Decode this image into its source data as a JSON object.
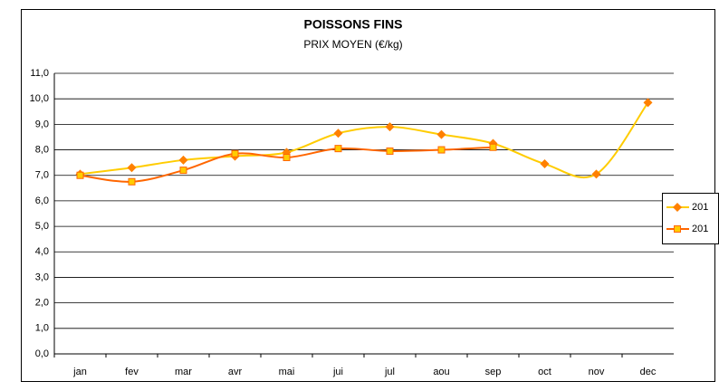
{
  "chart_data": {
    "type": "line",
    "title": "POISSONS FINS",
    "subtitle": "PRIX MOYEN (€/kg)",
    "categories": [
      "jan",
      "fev",
      "mar",
      "avr",
      "mai",
      "jui",
      "jul",
      "aou",
      "sep",
      "oct",
      "nov",
      "dec"
    ],
    "series": [
      {
        "name": "201",
        "color": "#ffcc00",
        "marker_color": "#ff8000",
        "marker": "diamond",
        "values": [
          7.05,
          7.3,
          7.6,
          7.75,
          7.9,
          8.65,
          8.9,
          8.6,
          8.25,
          7.45,
          7.05,
          9.85
        ]
      },
      {
        "name": "201",
        "color": "#ff6600",
        "marker_color": "#ffcc00",
        "marker": "square",
        "values": [
          7.0,
          6.75,
          7.2,
          7.85,
          7.7,
          8.05,
          7.95,
          8.0,
          8.1,
          null,
          null,
          null
        ]
      }
    ],
    "ylim": [
      0,
      11
    ],
    "yticks": [
      {
        "value": 0,
        "label": "0,0"
      },
      {
        "value": 1,
        "label": "1,0"
      },
      {
        "value": 2,
        "label": "2,0"
      },
      {
        "value": 3,
        "label": "3,0"
      },
      {
        "value": 4,
        "label": "4,0"
      },
      {
        "value": 5,
        "label": "5,0"
      },
      {
        "value": 6,
        "label": "6,0"
      },
      {
        "value": 7,
        "label": "7,0"
      },
      {
        "value": 8,
        "label": "8,0"
      },
      {
        "value": 9,
        "label": "9,0"
      },
      {
        "value": 10,
        "label": "10,0"
      },
      {
        "value": 11,
        "label": "11,0"
      }
    ],
    "grid": true,
    "smooth": true,
    "legend": "right"
  }
}
